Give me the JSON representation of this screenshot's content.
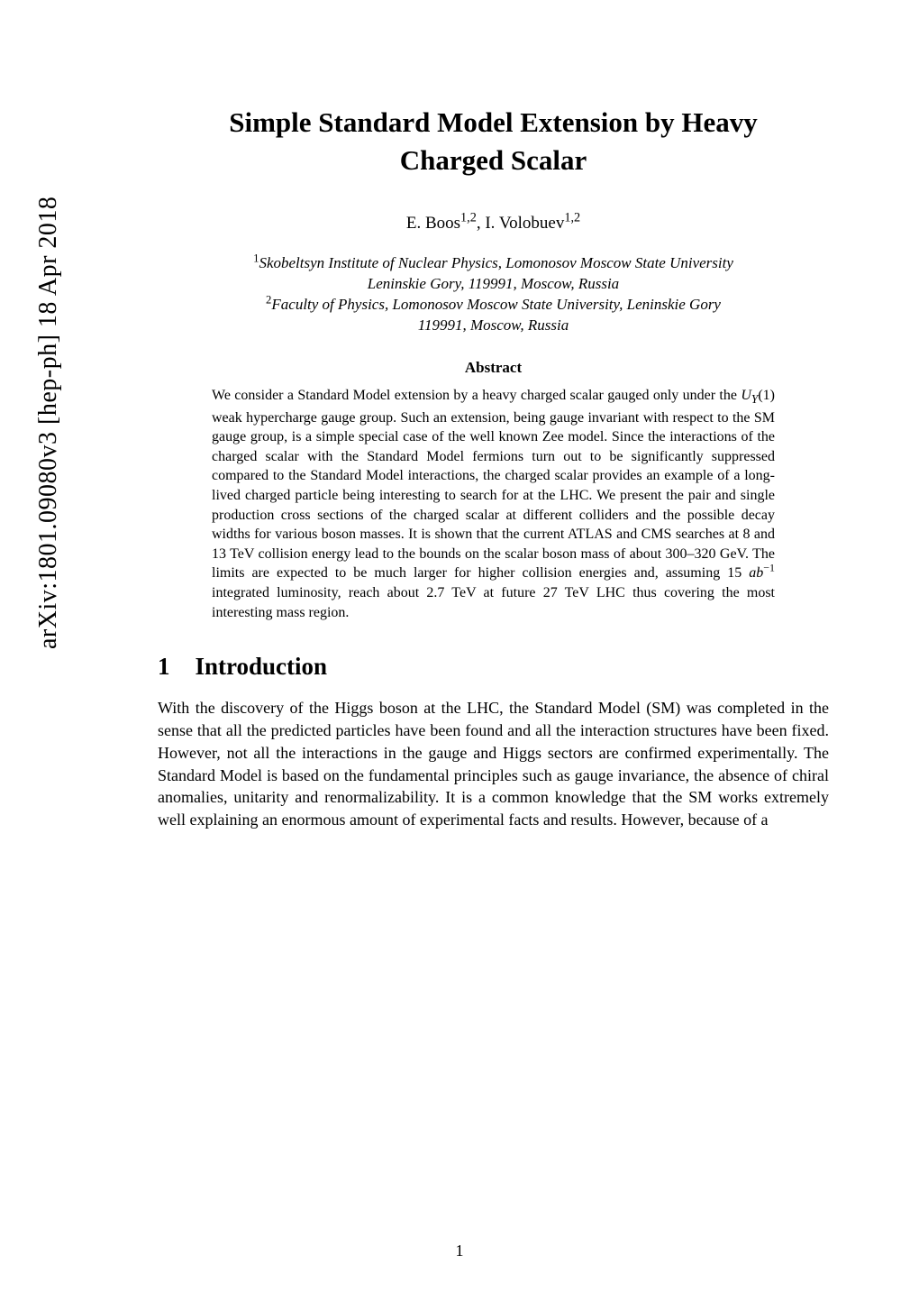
{
  "arxiv": {
    "id": "arXiv:1801.09080v3  [hep-ph]  18 Apr 2018"
  },
  "title": {
    "line1": "Simple Standard Model Extension by Heavy",
    "line2": "Charged Scalar"
  },
  "authors": "E. Boos¹ʼ², I. Volobuev¹ʼ²",
  "affiliations": {
    "a1_line1": "¹Skobeltsyn Institute of Nuclear Physics, Lomonosov Moscow State University",
    "a1_line2": "Leninskie Gory, 119991, Moscow, Russia",
    "a2_line1": "²Faculty of Physics, Lomonosov Moscow State University, Leninskie Gory",
    "a2_line2": "119991, Moscow, Russia"
  },
  "abstract": {
    "heading": "Abstract",
    "body": "We consider a Standard Model extension by a heavy charged scalar gauged only under the U_Y(1) weak hypercharge gauge group. Such an extension, being gauge invariant with respect to the SM gauge group, is a simple special case of the well known Zee model. Since the interactions of the charged scalar with the Standard Model fermions turn out to be significantly suppressed compared to the Standard Model interactions, the charged scalar provides an example of a long-lived charged particle being interesting to search for at the LHC. We present the pair and single production cross sections of the charged scalar at different colliders and the possible decay widths for various boson masses. It is shown that the current ATLAS and CMS searches at 8 and 13 TeV collision energy lead to the bounds on the scalar boson mass of about 300–320 GeV. The limits are expected to be much larger for higher collision energies and, assuming 15 ab⁻¹ integrated luminosity, reach about 2.7 TeV at future 27 TeV LHC thus covering the most interesting mass region."
  },
  "section1": {
    "number": "1",
    "title": "Introduction",
    "body": "With the discovery of the Higgs boson at the LHC, the Standard Model (SM) was completed in the sense that all the predicted particles have been found and all the interaction structures have been fixed. However, not all the interactions in the gauge and Higgs sectors are confirmed experimentally. The Standard Model is based on the fundamental principles such as gauge invariance, the absence of chiral anomalies, unitarity and renormalizability. It is a common knowledge that the SM works extremely well explaining an enormous amount of experimental facts and results. However, because of a"
  },
  "page_number": "1",
  "style": {
    "background_color": "#ffffff",
    "text_color": "#000000",
    "title_fontsize": 31,
    "authors_fontsize": 19,
    "affil_fontsize": 17,
    "abstract_heading_fontsize": 17,
    "abstract_body_fontsize": 16,
    "section_heading_fontsize": 27,
    "body_fontsize": 18,
    "arxiv_fontsize": 28,
    "font_family": "Times New Roman"
  }
}
